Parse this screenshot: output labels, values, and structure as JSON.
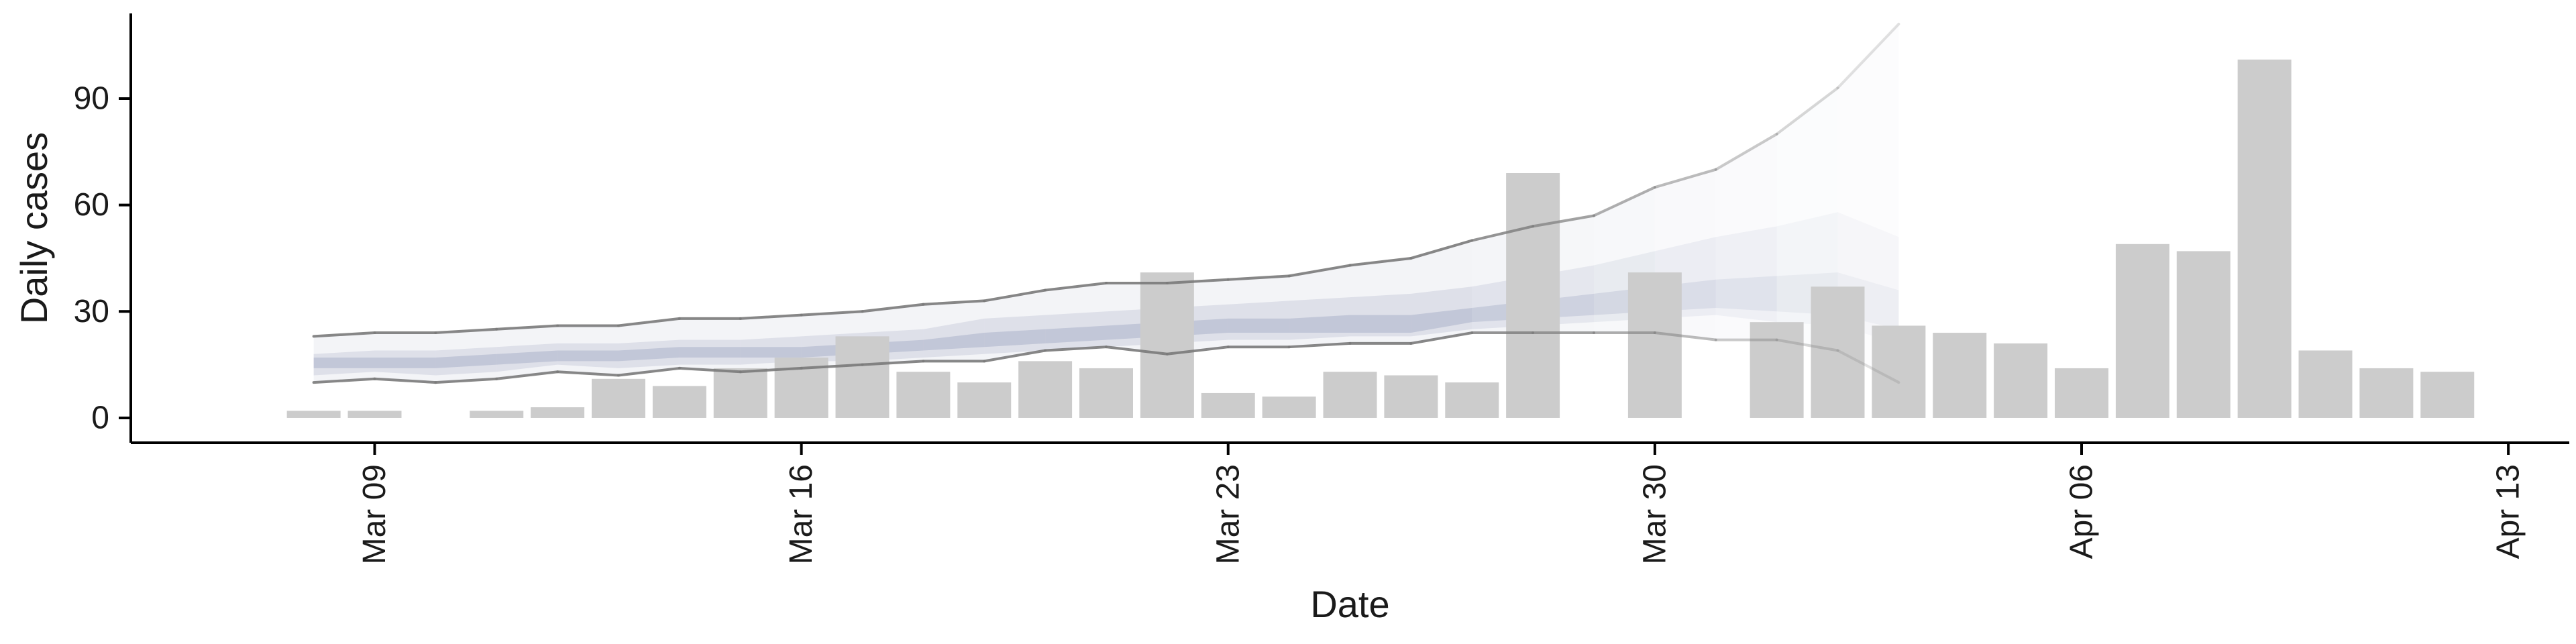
{
  "chart_data": {
    "type": "bar",
    "title": "",
    "xlabel": "Date",
    "ylabel": "Daily cases",
    "x_type": "date",
    "xlim": [
      "2020-03-05",
      "2020-04-14"
    ],
    "ylim": [
      -7,
      114
    ],
    "x_ticks": [
      {
        "date": "2020-03-09",
        "label": "Mar 09"
      },
      {
        "date": "2020-03-16",
        "label": "Mar 16"
      },
      {
        "date": "2020-03-23",
        "label": "Mar 23"
      },
      {
        "date": "2020-03-30",
        "label": "Mar 30"
      },
      {
        "date": "2020-04-06",
        "label": "Apr 06"
      },
      {
        "date": "2020-04-13",
        "label": "Apr 13"
      }
    ],
    "y_ticks": [
      0,
      30,
      60,
      90
    ],
    "grid": false,
    "legend": "none",
    "bar_color": "#cccccc",
    "bars": {
      "dates": [
        "2020-03-08",
        "2020-03-09",
        "2020-03-10",
        "2020-03-11",
        "2020-03-12",
        "2020-03-13",
        "2020-03-14",
        "2020-03-15",
        "2020-03-16",
        "2020-03-17",
        "2020-03-18",
        "2020-03-19",
        "2020-03-20",
        "2020-03-21",
        "2020-03-22",
        "2020-03-23",
        "2020-03-24",
        "2020-03-25",
        "2020-03-26",
        "2020-03-27",
        "2020-03-28",
        "2020-03-29",
        "2020-03-30",
        "2020-03-31",
        "2020-04-01",
        "2020-04-02",
        "2020-04-03",
        "2020-04-04",
        "2020-04-05",
        "2020-04-06",
        "2020-04-07",
        "2020-04-08",
        "2020-04-09",
        "2020-04-10",
        "2020-04-11",
        "2020-04-12"
      ],
      "values": [
        2,
        2,
        0,
        2,
        3,
        11,
        9,
        14,
        17,
        23,
        13,
        10,
        16,
        14,
        41,
        7,
        6,
        13,
        12,
        10,
        69,
        0,
        41,
        0,
        27,
        37,
        26,
        24,
        21,
        14,
        49,
        47,
        101,
        19,
        14,
        13
      ]
    },
    "estimate": {
      "band_color": "#8a93b5",
      "line_color": "#7a7a7a",
      "dates": [
        "2020-03-08",
        "2020-03-09",
        "2020-03-10",
        "2020-03-11",
        "2020-03-12",
        "2020-03-13",
        "2020-03-14",
        "2020-03-15",
        "2020-03-16",
        "2020-03-17",
        "2020-03-18",
        "2020-03-19",
        "2020-03-20",
        "2020-03-21",
        "2020-03-22",
        "2020-03-23",
        "2020-03-24",
        "2020-03-25",
        "2020-03-26",
        "2020-03-27",
        "2020-03-28",
        "2020-03-29",
        "2020-03-30",
        "2020-03-31",
        "2020-04-01",
        "2020-04-02",
        "2020-04-03"
      ],
      "upper90": [
        23,
        24,
        24,
        25,
        26,
        26,
        28,
        28,
        29,
        30,
        32,
        33,
        36,
        38,
        38,
        39,
        40,
        43,
        45,
        50,
        54,
        57,
        65,
        70,
        80,
        93,
        111
      ],
      "upper50": [
        18,
        19,
        19,
        20,
        21,
        21,
        22,
        22,
        23,
        24,
        25,
        28,
        29,
        30,
        31,
        32,
        33,
        34,
        35,
        37,
        40,
        43,
        47,
        51,
        54,
        58,
        51
      ],
      "upper20": [
        17,
        17,
        17,
        18,
        19,
        19,
        20,
        20,
        20,
        21,
        22,
        24,
        25,
        26,
        27,
        28,
        28,
        29,
        29,
        31,
        33,
        35,
        37,
        39,
        40,
        41,
        36
      ],
      "lower20": [
        14,
        14,
        14,
        15,
        16,
        16,
        17,
        17,
        17,
        18,
        19,
        20,
        21,
        22,
        23,
        24,
        24,
        24,
        24,
        27,
        28,
        29,
        30,
        31,
        30,
        29,
        25
      ],
      "lower50": [
        12,
        13,
        12,
        13,
        15,
        14,
        15,
        15,
        16,
        16,
        17,
        18,
        19,
        20,
        21,
        22,
        22,
        23,
        23,
        25,
        26,
        27,
        28,
        29,
        27,
        26,
        21
      ],
      "lower90": [
        10,
        11,
        10,
        11,
        13,
        12,
        14,
        13,
        14,
        15,
        16,
        16,
        19,
        20,
        18,
        20,
        20,
        21,
        21,
        24,
        24,
        24,
        24,
        22,
        22,
        19,
        10
      ]
    }
  }
}
